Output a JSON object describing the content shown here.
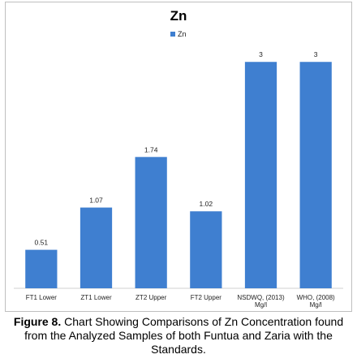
{
  "chart_data": {
    "type": "bar",
    "title": "Zn",
    "categories": [
      [
        "FT1 Lower"
      ],
      [
        "ZT1 Lower"
      ],
      [
        "ZT2 Upper"
      ],
      [
        "FT2 Upper"
      ],
      [
        "NSDWQ, (2013)",
        "Mg/l"
      ],
      [
        "WHO, (2008)",
        "Mg/l"
      ]
    ],
    "series": [
      {
        "name": "Zn",
        "values": [
          0.51,
          1.07,
          1.74,
          1.02,
          3,
          3
        ],
        "color": "#3f7fd0"
      }
    ],
    "data_labels": [
      "0.51",
      "1.07",
      "1.74",
      "1.02",
      "3",
      "3"
    ],
    "ylim": [
      0,
      3.25
    ],
    "grid": false,
    "legend_position": "top-center"
  },
  "caption": {
    "label": "Figure 8.",
    "text": " Chart Showing Comparisons of Zn Concentration found from the Analyzed Samples of both Funtua and Zaria with the Standards."
  }
}
